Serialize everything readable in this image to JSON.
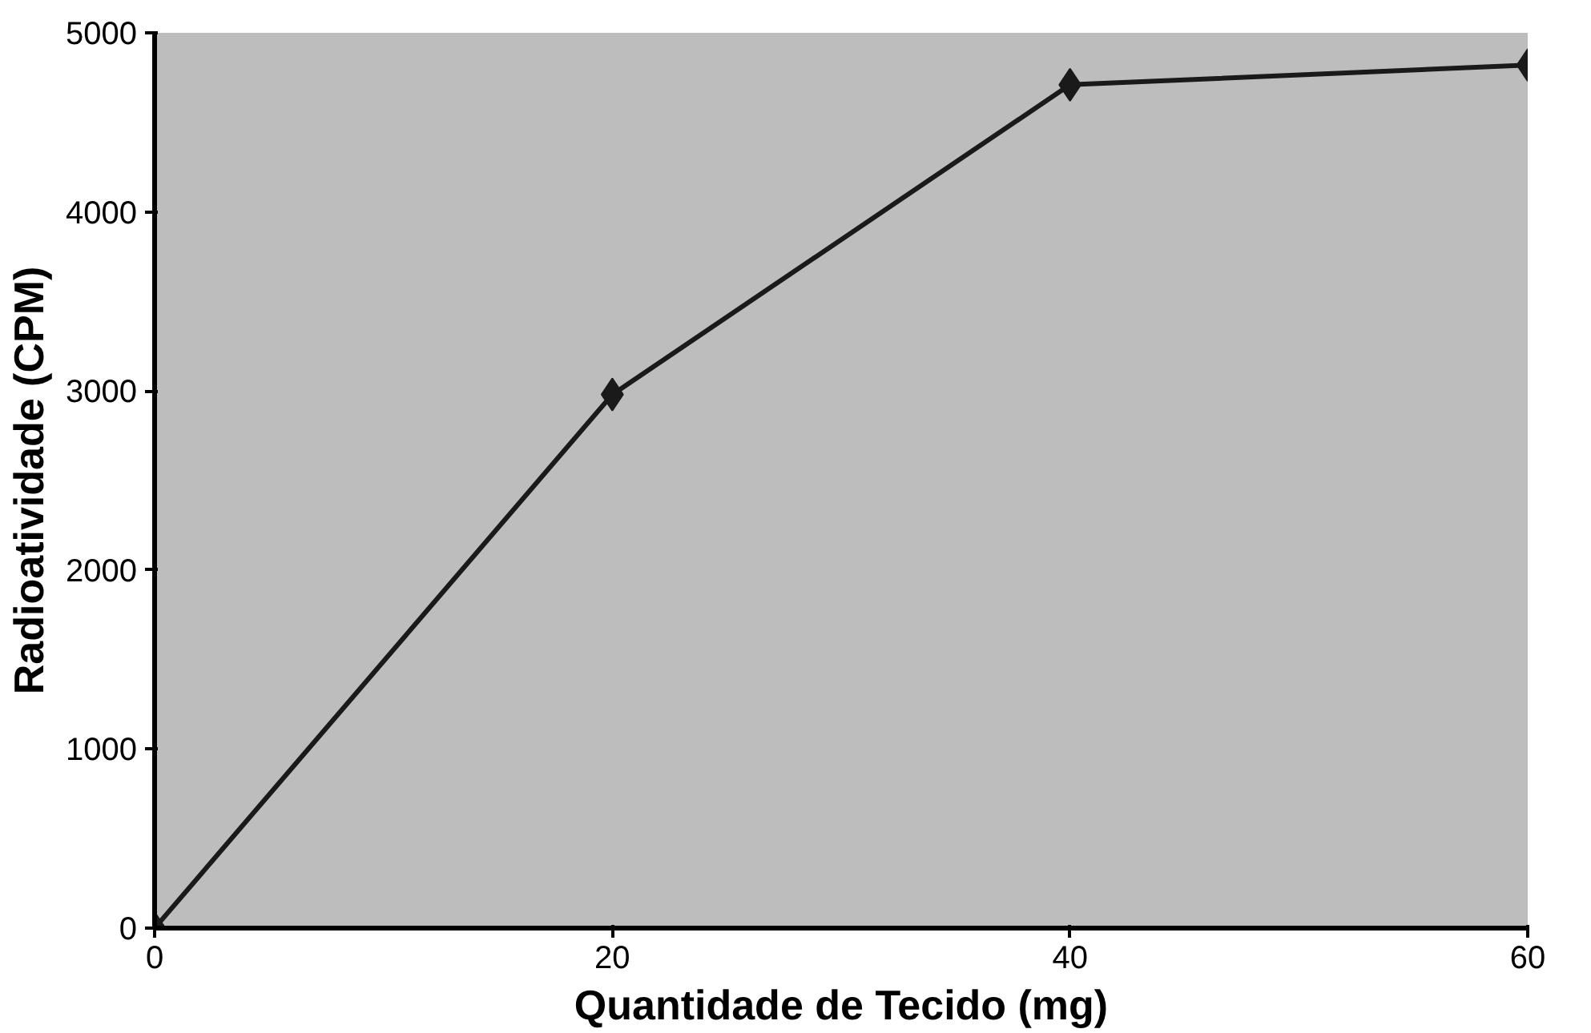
{
  "chart_data": {
    "type": "line",
    "xlabel": "Quantidade de Tecido (mg)",
    "ylabel": "Radioatividade (CPM)",
    "x": [
      0,
      20,
      40,
      60
    ],
    "series": [
      {
        "color": "#1a1a1a",
        "values": [
          0,
          2980,
          4710,
          4820
        ]
      }
    ],
    "xlim": [
      0,
      60
    ],
    "ylim": [
      0,
      5000
    ],
    "xticks": [
      0,
      20,
      40,
      60
    ],
    "yticks": [
      0,
      1000,
      2000,
      3000,
      4000,
      5000
    ],
    "marker": "diamond",
    "line_style": "solid"
  }
}
